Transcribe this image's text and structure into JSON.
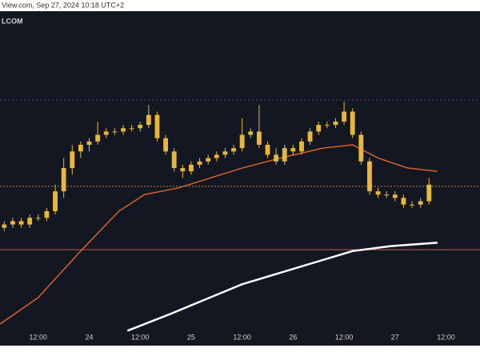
{
  "header": {
    "text": "View.com, Sep 27, 2024 10:18 UTC+2",
    "symbol": "LCOM"
  },
  "chart_data": {
    "type": "candlestick",
    "color": "#e9b83b",
    "x": [
      1,
      3,
      5,
      7,
      9,
      11,
      13,
      15,
      17,
      19,
      21,
      23,
      25,
      27,
      29,
      31,
      33,
      35,
      37,
      39,
      41,
      43,
      45,
      47,
      49,
      51,
      53,
      55,
      57,
      59,
      61,
      63,
      65,
      67,
      69,
      71,
      73,
      75,
      77,
      79,
      81,
      83,
      85,
      87,
      89,
      91,
      93,
      95,
      97,
      99,
      101
    ],
    "open": [
      35,
      36,
      37,
      36,
      38,
      38,
      40,
      46,
      53,
      58,
      60,
      61,
      63,
      64,
      64,
      65,
      65,
      66,
      69,
      62,
      58,
      53,
      52,
      54,
      55,
      56,
      57,
      58,
      59,
      63,
      64,
      60,
      57,
      55,
      59,
      58,
      61,
      64,
      66,
      66,
      67,
      70,
      63,
      55,
      46,
      45,
      45,
      44,
      42,
      42,
      43
    ],
    "high": [
      37,
      38,
      38,
      39,
      39,
      41,
      48,
      56,
      60,
      61,
      62,
      67,
      65,
      65,
      66,
      66,
      67,
      72,
      70,
      63,
      59,
      54,
      55,
      56,
      57,
      58,
      59,
      60,
      68,
      65,
      72,
      61,
      59,
      60,
      60,
      62,
      65,
      67,
      67,
      68,
      73,
      71,
      64,
      56,
      47,
      46,
      46,
      45,
      43,
      44,
      50
    ],
    "low": [
      34,
      35,
      35,
      35,
      37,
      37,
      39,
      44,
      51,
      56,
      58,
      60,
      62,
      63,
      63,
      64,
      64,
      65,
      61,
      57,
      52,
      50,
      51,
      53,
      54,
      55,
      56,
      57,
      58,
      62,
      59,
      56,
      54,
      54,
      57,
      57,
      60,
      63,
      65,
      65,
      66,
      62,
      54,
      45,
      44,
      44,
      43,
      41,
      41,
      41,
      42
    ],
    "close": [
      36,
      37,
      36,
      38,
      38,
      40,
      46,
      53,
      58,
      60,
      61,
      63,
      64,
      64,
      65,
      65,
      66,
      69,
      62,
      58,
      53,
      52,
      54,
      55,
      56,
      57,
      58,
      59,
      63,
      64,
      60,
      57,
      55,
      59,
      58,
      61,
      64,
      66,
      66,
      67,
      70,
      63,
      55,
      46,
      45,
      45,
      44,
      42,
      42,
      43,
      48
    ],
    "lines": [
      {
        "color": "#d9622b",
        "x": [
          0,
          9,
          19,
          28,
          34,
          42,
          57,
          66,
          76,
          83,
          89,
          96,
          103
        ],
        "values": [
          6,
          14,
          28,
          40,
          45,
          47,
          53,
          56,
          59,
          60,
          56,
          53,
          52
        ]
      },
      {
        "color": "#ffffff",
        "x": [
          30,
          40,
          57,
          70,
          83,
          92,
          103
        ],
        "values": [
          4,
          9,
          18,
          23,
          28,
          29.5,
          30.5
        ]
      }
    ],
    "levels": [
      {
        "value": 73.5,
        "color": "#3a4a6a",
        "dash": "2,3"
      },
      {
        "value": 47.5,
        "color": "#b8804a",
        "dash": "2,2"
      },
      {
        "value": 28.4,
        "color": "#b0665a",
        "dash": "none"
      }
    ],
    "xlim": [
      0,
      113
    ],
    "ylim": [
      0,
      100
    ],
    "xticks": [
      {
        "value": 9,
        "label": "12:00"
      },
      {
        "value": 21,
        "label": "24"
      },
      {
        "value": 33,
        "label": "12:00"
      },
      {
        "value": 45,
        "label": "25"
      },
      {
        "value": 57,
        "label": "12:00"
      },
      {
        "value": 69,
        "label": "26"
      },
      {
        "value": 81,
        "label": "12:00"
      },
      {
        "value": 93,
        "label": "27"
      },
      {
        "value": 105,
        "label": "12:00"
      }
    ]
  }
}
